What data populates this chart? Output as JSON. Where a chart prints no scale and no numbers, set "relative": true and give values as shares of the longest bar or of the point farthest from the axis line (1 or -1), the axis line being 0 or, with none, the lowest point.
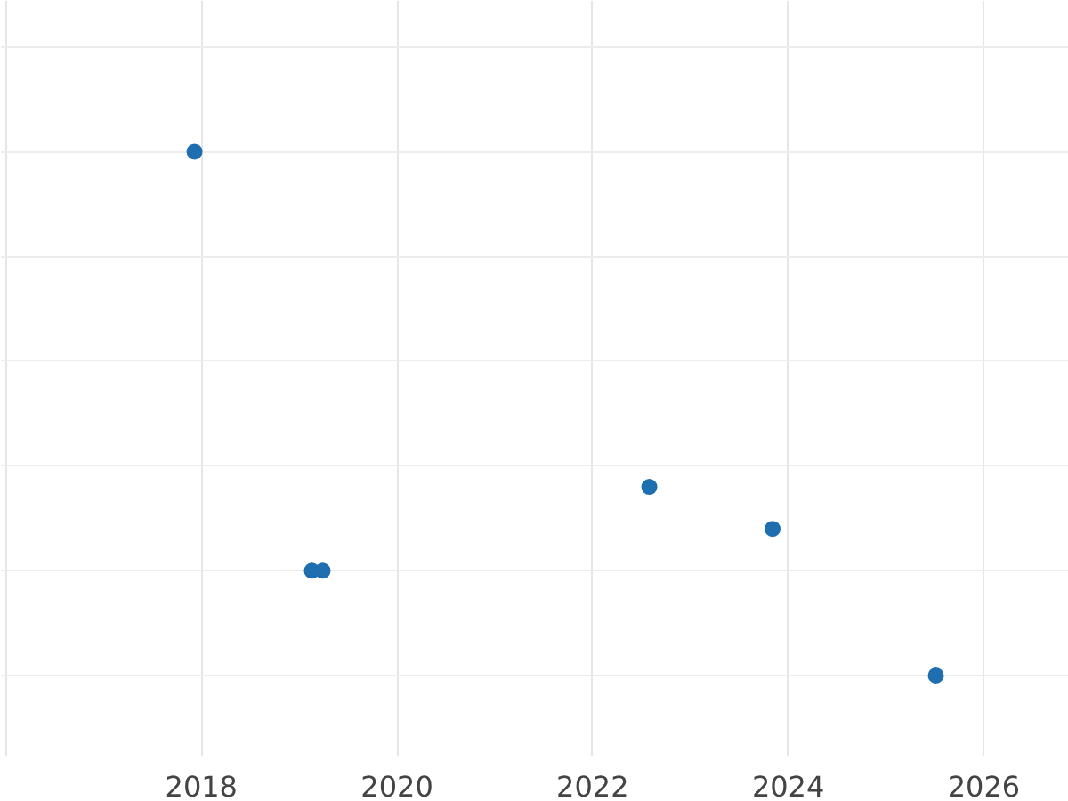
{
  "chart_data": {
    "type": "scatter",
    "relative": true,
    "x": [
      2017.93,
      2019.13,
      2019.24,
      2022.58,
      2023.84,
      2025.51
    ],
    "series": [
      {
        "color": "#1f6eb0",
        "values": [
          1,
          0.2,
          0.2,
          0.36,
          0.28,
          0
        ]
      }
    ],
    "xlim": [
      2015.95,
      2026.87
    ],
    "xticks": [
      {
        "value": 2016,
        "label": null
      },
      2018,
      2020,
      2022,
      2024,
      2026
    ],
    "grid": true,
    "marker": "circle",
    "tick_labels": "x"
  }
}
